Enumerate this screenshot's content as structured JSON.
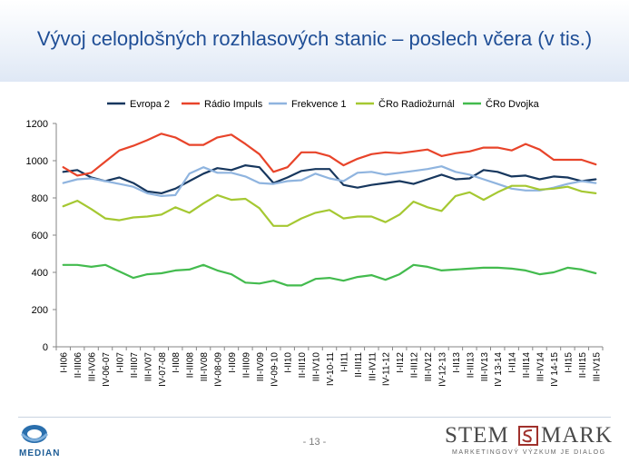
{
  "slide": {
    "title": "Vývoj celoplošných rozhlasových stanic – poslech včera (v tis.)",
    "page_number": "- 13 -",
    "logo_left": "MEDIAN",
    "logo_right_part1": "STEM",
    "logo_right_part2": "MARK",
    "logo_right_tagline": "MARKETINGOVÝ VÝZKUM JE DIALOG"
  },
  "chart_data": {
    "type": "line",
    "title": "",
    "xlabel": "",
    "ylabel": "",
    "ylim": [
      0,
      1200
    ],
    "yticks": [
      0,
      200,
      400,
      600,
      800,
      1000,
      1200
    ],
    "legend_position": "top",
    "grid": false,
    "categories": [
      "I-II06",
      "II-III06",
      "III-IV06",
      "IV-06-07",
      "I-II07",
      "II-III07",
      "III-IV07",
      "IV-07-08",
      "I-II08",
      "II-III08",
      "III-IV08",
      "IV-08-09",
      "I-II09",
      "II-III09",
      "III-IV09",
      "IV-09-10",
      "I-II10",
      "II-III10",
      "III-IV10",
      "IV-10-11",
      "I-II11",
      "II-III11",
      "III-IV11",
      "IV-11-12",
      "I-II12",
      "II-III12",
      "III-IV12",
      "IV-12-13",
      "I-II13",
      "II-III13",
      "III-IV13",
      "IV 13-14",
      "I-II14",
      "II-III14",
      "III-IV14",
      "IV 14-15",
      "I-II15",
      "II-III15",
      "III-IV15"
    ],
    "series": [
      {
        "name": "Evropa 2",
        "color": "#17375e",
        "values": [
          940,
          950,
          910,
          890,
          910,
          880,
          835,
          825,
          850,
          890,
          930,
          960,
          950,
          975,
          965,
          880,
          910,
          945,
          955,
          955,
          870,
          855,
          870,
          880,
          890,
          875,
          900,
          925,
          900,
          905,
          950,
          940,
          915,
          920,
          900,
          915,
          910,
          890,
          900
        ]
      },
      {
        "name": "Rádio Impuls",
        "color": "#e8442a",
        "values": [
          965,
          920,
          935,
          995,
          1055,
          1080,
          1110,
          1145,
          1125,
          1085,
          1085,
          1125,
          1140,
          1090,
          1035,
          940,
          965,
          1045,
          1045,
          1025,
          975,
          1010,
          1035,
          1045,
          1040,
          1050,
          1060,
          1025,
          1040,
          1050,
          1070,
          1070,
          1055,
          1090,
          1060,
          1005,
          1005,
          1005,
          980
        ]
      },
      {
        "name": "Frekvence 1",
        "color": "#8fb4df",
        "values": [
          880,
          900,
          905,
          890,
          875,
          860,
          825,
          810,
          815,
          930,
          965,
          935,
          935,
          915,
          880,
          875,
          890,
          895,
          930,
          905,
          890,
          935,
          940,
          925,
          935,
          945,
          955,
          970,
          940,
          925,
          900,
          875,
          850,
          840,
          840,
          855,
          875,
          890,
          880
        ]
      },
      {
        "name": "ČRo Radiožurnál",
        "color": "#a5c832",
        "values": [
          755,
          785,
          740,
          690,
          680,
          695,
          700,
          710,
          750,
          720,
          770,
          815,
          790,
          795,
          745,
          650,
          650,
          690,
          720,
          735,
          690,
          700,
          700,
          670,
          710,
          780,
          750,
          730,
          810,
          830,
          790,
          830,
          865,
          865,
          845,
          850,
          860,
          835,
          825
        ]
      },
      {
        "name": "ČRo Dvojka",
        "color": "#43bb4e",
        "values": [
          440,
          440,
          430,
          440,
          405,
          370,
          390,
          395,
          410,
          415,
          440,
          410,
          390,
          345,
          340,
          355,
          330,
          330,
          365,
          370,
          355,
          375,
          385,
          360,
          390,
          440,
          430,
          410,
          415,
          420,
          425,
          425,
          420,
          410,
          390,
          400,
          425,
          415,
          395
        ]
      }
    ]
  }
}
